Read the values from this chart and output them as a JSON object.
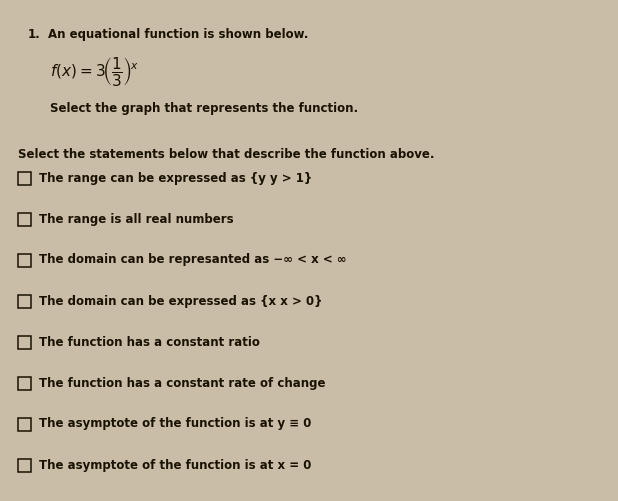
{
  "background_color": "#c9bda8",
  "number_label": "1.",
  "line1": "An equational function is shown below.",
  "line3": "Select the graph that represents the function.",
  "section_header": "Select the statements below that describe the function above.",
  "checkboxes": [
    "The range can be expressed as {y y > 1}",
    "The range is all real numbers",
    "The domain can be represanted as −∞ < x < ∞",
    "The domain can be expressed as {x x > 0}",
    "The function has a constant ratio",
    "The function has a constant rate of change",
    "The asymptote of the function is at y ≡ 0",
    "The asymptote of the function is at x = 0"
  ],
  "text_color": "#1a1200",
  "font_size_small": 8.5,
  "font_size_header": 8.5,
  "font_size_function": 11
}
